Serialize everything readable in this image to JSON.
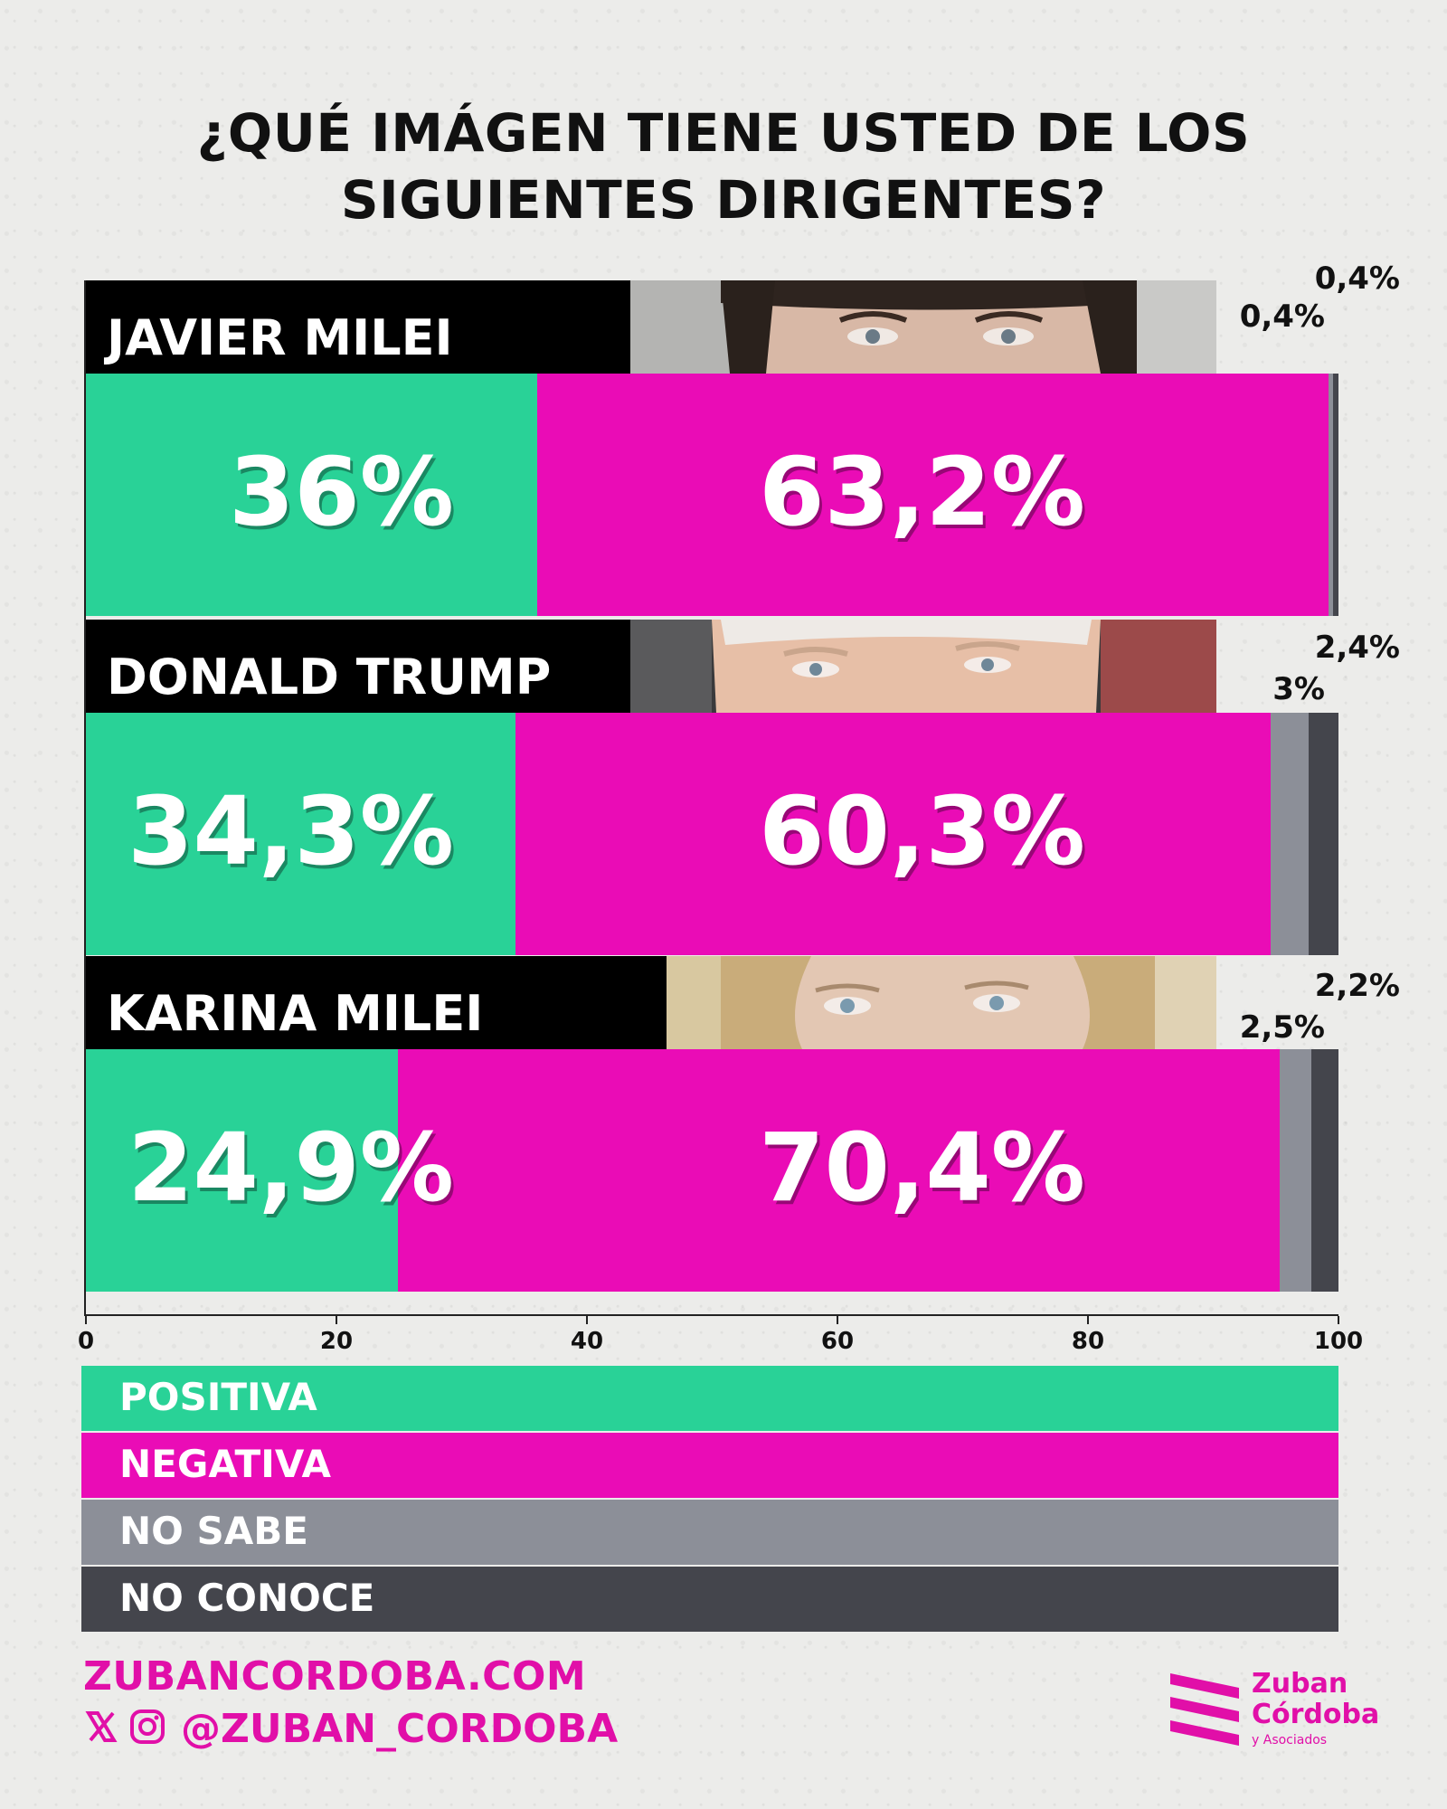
{
  "title": "¿QUÉ IMÁGEN TIENE USTED DE LOS\nSIGUIENTES DIRIGENTES?",
  "colors": {
    "positiva": "#29d297",
    "negativa": "#ea0cb6",
    "no_sabe": "#8c8f98",
    "no_conoce": "#44454c",
    "brand": "#e10fa8"
  },
  "chart_data": {
    "type": "bar",
    "orientation": "horizontal-stacked",
    "xlim": [
      0,
      100
    ],
    "xticks": [
      "0",
      "20",
      "40",
      "60",
      "80",
      "100"
    ],
    "categories": [
      "JAVIER MILEI",
      "DONALD TRUMP",
      "KARINA MILEI"
    ],
    "series": [
      {
        "name": "POSITIVA",
        "values": [
          36,
          34.3,
          24.9
        ],
        "labels": [
          "36%",
          "34,3%",
          "24,9%"
        ]
      },
      {
        "name": "NEGATIVA",
        "values": [
          63.2,
          60.3,
          70.4
        ],
        "labels": [
          "63,2%",
          "60,3%",
          "70,4%"
        ]
      },
      {
        "name": "NO SABE",
        "values": [
          0.4,
          3,
          2.5
        ],
        "labels": [
          "0,4%",
          "3%",
          "2,5%"
        ]
      },
      {
        "name": "NO CONOCE",
        "values": [
          0.4,
          2.4,
          2.2
        ],
        "labels": [
          "0,4%",
          "2,4%",
          "2,2%"
        ]
      }
    ]
  },
  "footer": {
    "website": "ZUBANCORDOBA.COM",
    "handle": "@ZUBAN_CORDOBA",
    "icons": [
      "x-icon",
      "instagram-icon"
    ],
    "logo": {
      "line1": "Zuban",
      "line2": "Córdoba",
      "line3": "y Asociados"
    }
  }
}
